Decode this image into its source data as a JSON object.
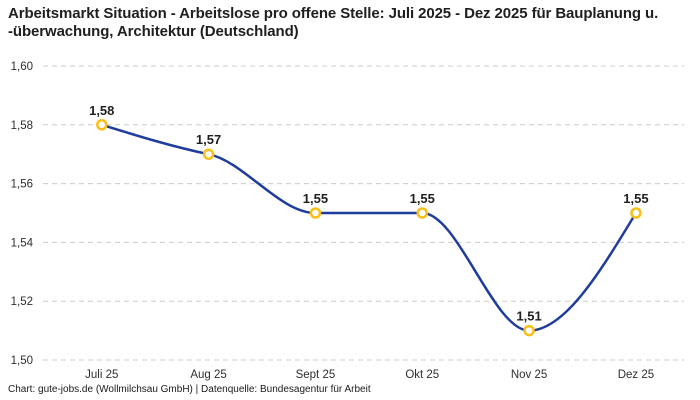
{
  "chart_data": {
    "type": "line",
    "title": "Arbeitsmarkt Situation - Arbeitslose pro offene Stelle: Juli 2025 - Dez 2025 für Bauplanung u. -überwachung, Architektur (Deutschland)",
    "source_note": "Chart: gute-jobs.de (Wollmilchsau GmbH) | Datenquelle: Bundesagentur für Arbeit",
    "categories": [
      "Juli 25",
      "Aug 25",
      "Sept 25",
      "Okt 25",
      "Nov 25",
      "Dez 25"
    ],
    "values": [
      1.58,
      1.57,
      1.55,
      1.55,
      1.51,
      1.55
    ],
    "point_labels": [
      "1,58",
      "1,57",
      "1,55",
      "1,55",
      "1,51",
      "1,55"
    ],
    "y_tick_labels": [
      "1,60",
      "1,58",
      "1,56",
      "1,54",
      "1,52",
      "1,50"
    ],
    "y_tick_values": [
      1.6,
      1.58,
      1.56,
      1.54,
      1.52,
      1.5
    ],
    "ylim": [
      1.5,
      1.6
    ],
    "xlabel": "",
    "ylabel": "",
    "legend": "none",
    "grid": "horizontal-dashed",
    "line_smoothing": "monotone",
    "colors": {
      "line": "#1e3c9c",
      "marker": "#fbbe17",
      "marker_fill": "#ffffff",
      "grid": "#cccccc",
      "title": "#1f1f1f",
      "point_label": "#1f1f1f",
      "tick": "#2e2e2e",
      "footer": "#1a1a1a",
      "background": "#ffffff"
    }
  }
}
